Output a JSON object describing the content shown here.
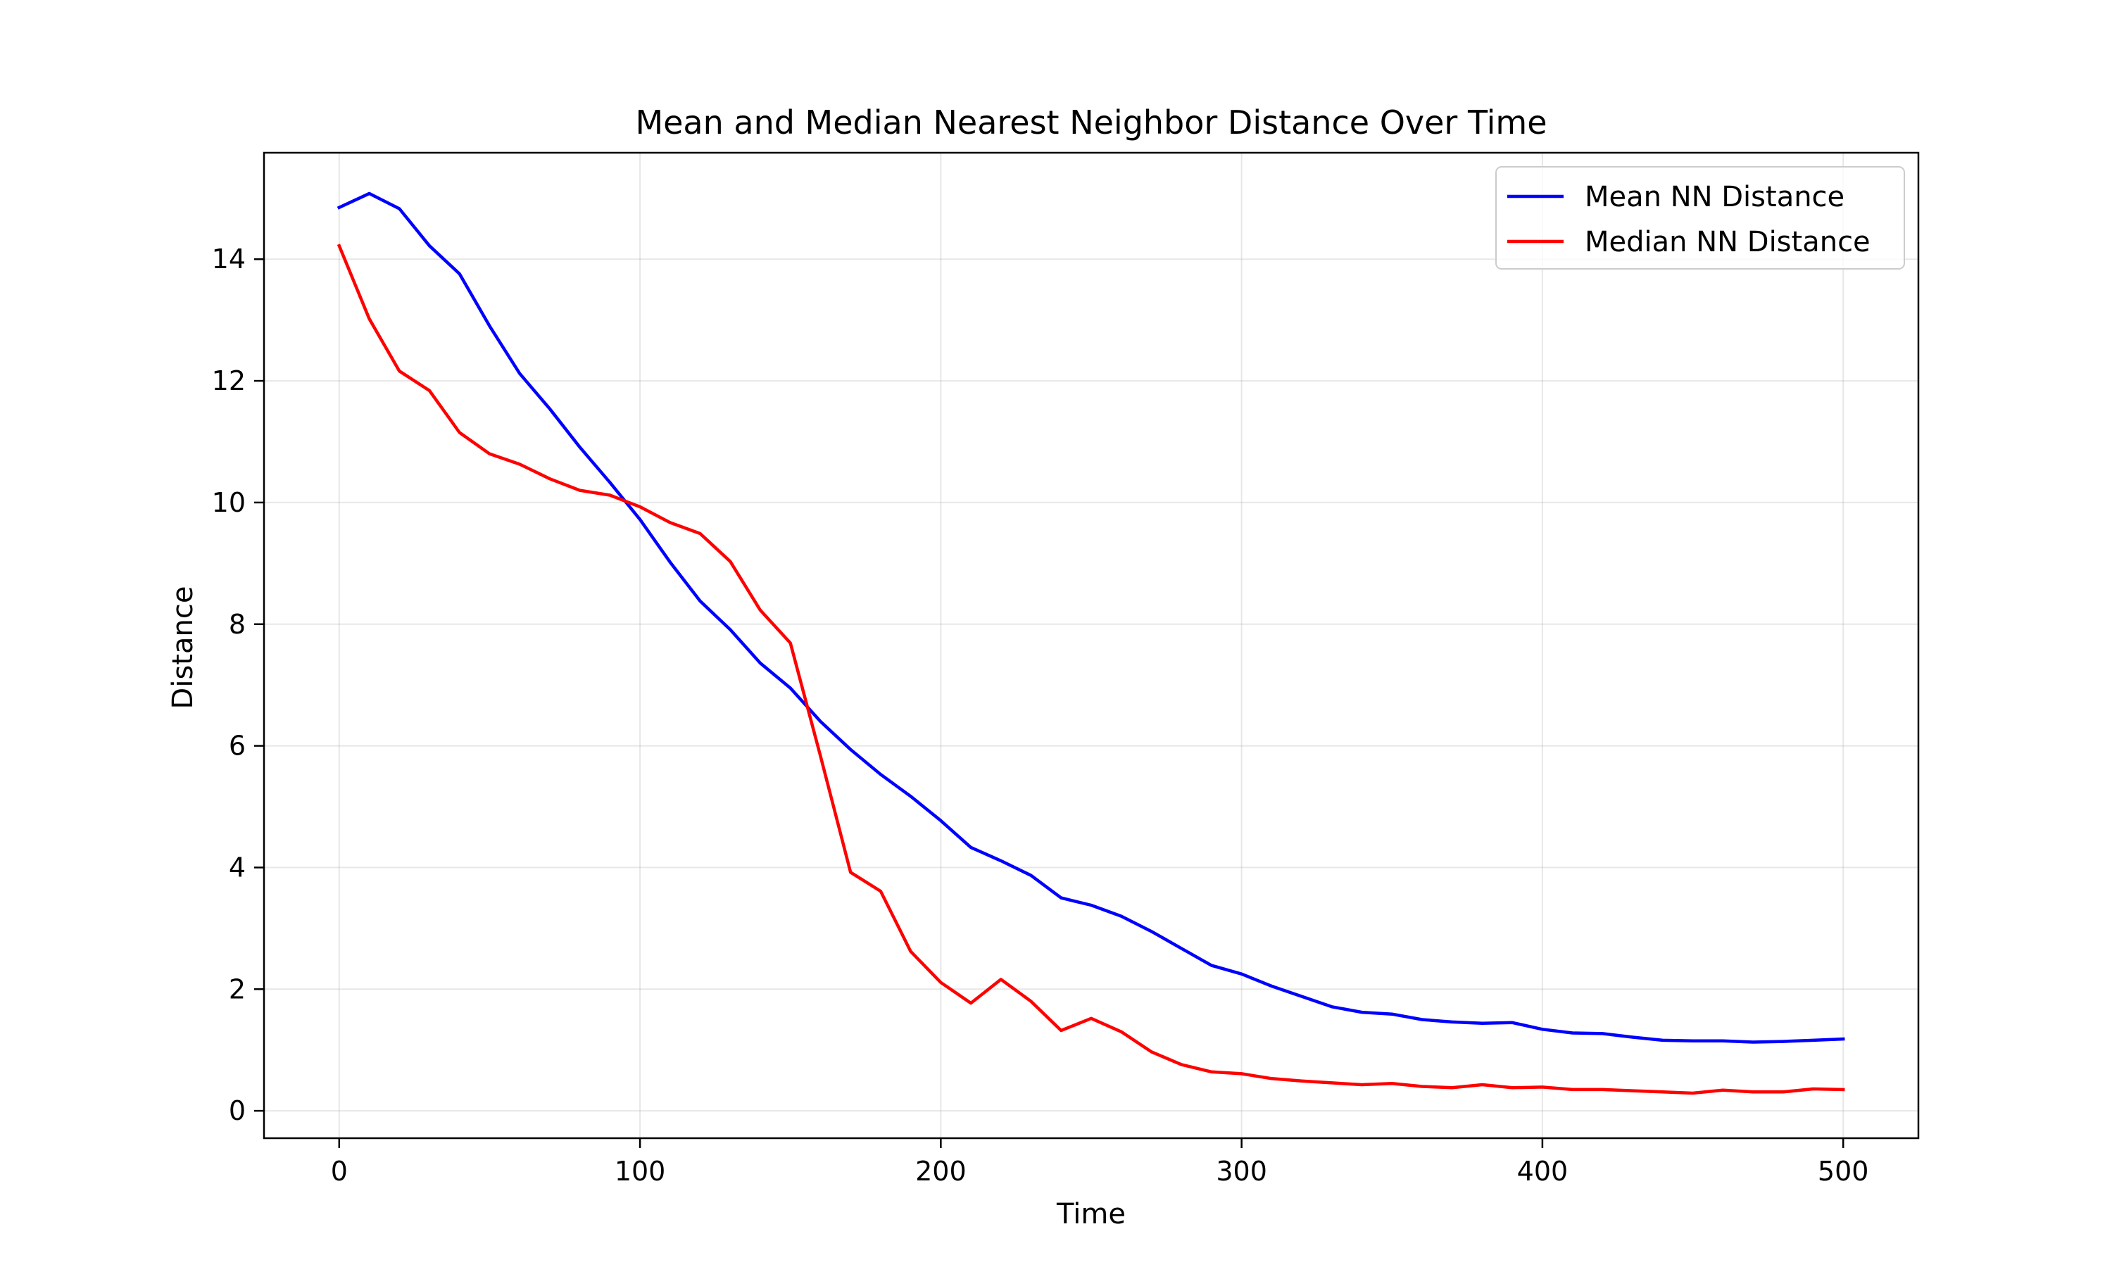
{
  "chart_data": {
    "type": "line",
    "title": "Mean and Median Nearest Neighbor Distance Over Time",
    "xlabel": "Time",
    "ylabel": "Distance",
    "xlim": [
      -25,
      525
    ],
    "ylim": [
      -0.45,
      15.75
    ],
    "xticks": [
      0,
      100,
      200,
      300,
      400,
      500
    ],
    "yticks": [
      0,
      2,
      4,
      6,
      8,
      10,
      12,
      14
    ],
    "grid": true,
    "legend_position": "top-right",
    "x": [
      0,
      10,
      20,
      30,
      40,
      50,
      60,
      70,
      80,
      90,
      100,
      110,
      120,
      130,
      140,
      150,
      160,
      170,
      180,
      190,
      200,
      210,
      220,
      230,
      240,
      250,
      260,
      270,
      280,
      290,
      300,
      310,
      320,
      330,
      340,
      350,
      360,
      370,
      380,
      390,
      400,
      410,
      420,
      430,
      440,
      450,
      460,
      470,
      480,
      490,
      500
    ],
    "series": [
      {
        "name": "Mean NN Distance",
        "color": "#0000ff",
        "values": [
          14.85,
          15.08,
          14.83,
          14.22,
          13.76,
          12.9,
          12.12,
          11.54,
          10.91,
          10.33,
          9.72,
          9.02,
          8.38,
          7.91,
          7.36,
          6.95,
          6.4,
          5.94,
          5.53,
          5.17,
          4.77,
          4.33,
          4.11,
          3.87,
          3.5,
          3.38,
          3.2,
          2.95,
          2.67,
          2.39,
          2.25,
          2.05,
          1.88,
          1.71,
          1.62,
          1.59,
          1.5,
          1.46,
          1.44,
          1.45,
          1.34,
          1.28,
          1.27,
          1.21,
          1.16,
          1.15,
          1.15,
          1.13,
          1.14,
          1.16,
          1.18
        ]
      },
      {
        "name": "Median NN Distance",
        "color": "#ff0000",
        "values": [
          14.22,
          13.02,
          12.16,
          11.84,
          11.15,
          10.8,
          10.63,
          10.39,
          10.2,
          10.12,
          9.93,
          9.67,
          9.49,
          9.03,
          8.23,
          7.69,
          5.83,
          3.92,
          3.61,
          2.62,
          2.11,
          1.77,
          2.16,
          1.8,
          1.32,
          1.52,
          1.3,
          0.97,
          0.76,
          0.64,
          0.61,
          0.53,
          0.49,
          0.46,
          0.43,
          0.45,
          0.4,
          0.38,
          0.43,
          0.38,
          0.39,
          0.35,
          0.35,
          0.33,
          0.31,
          0.29,
          0.34,
          0.31,
          0.31,
          0.36,
          0.35
        ]
      }
    ]
  }
}
